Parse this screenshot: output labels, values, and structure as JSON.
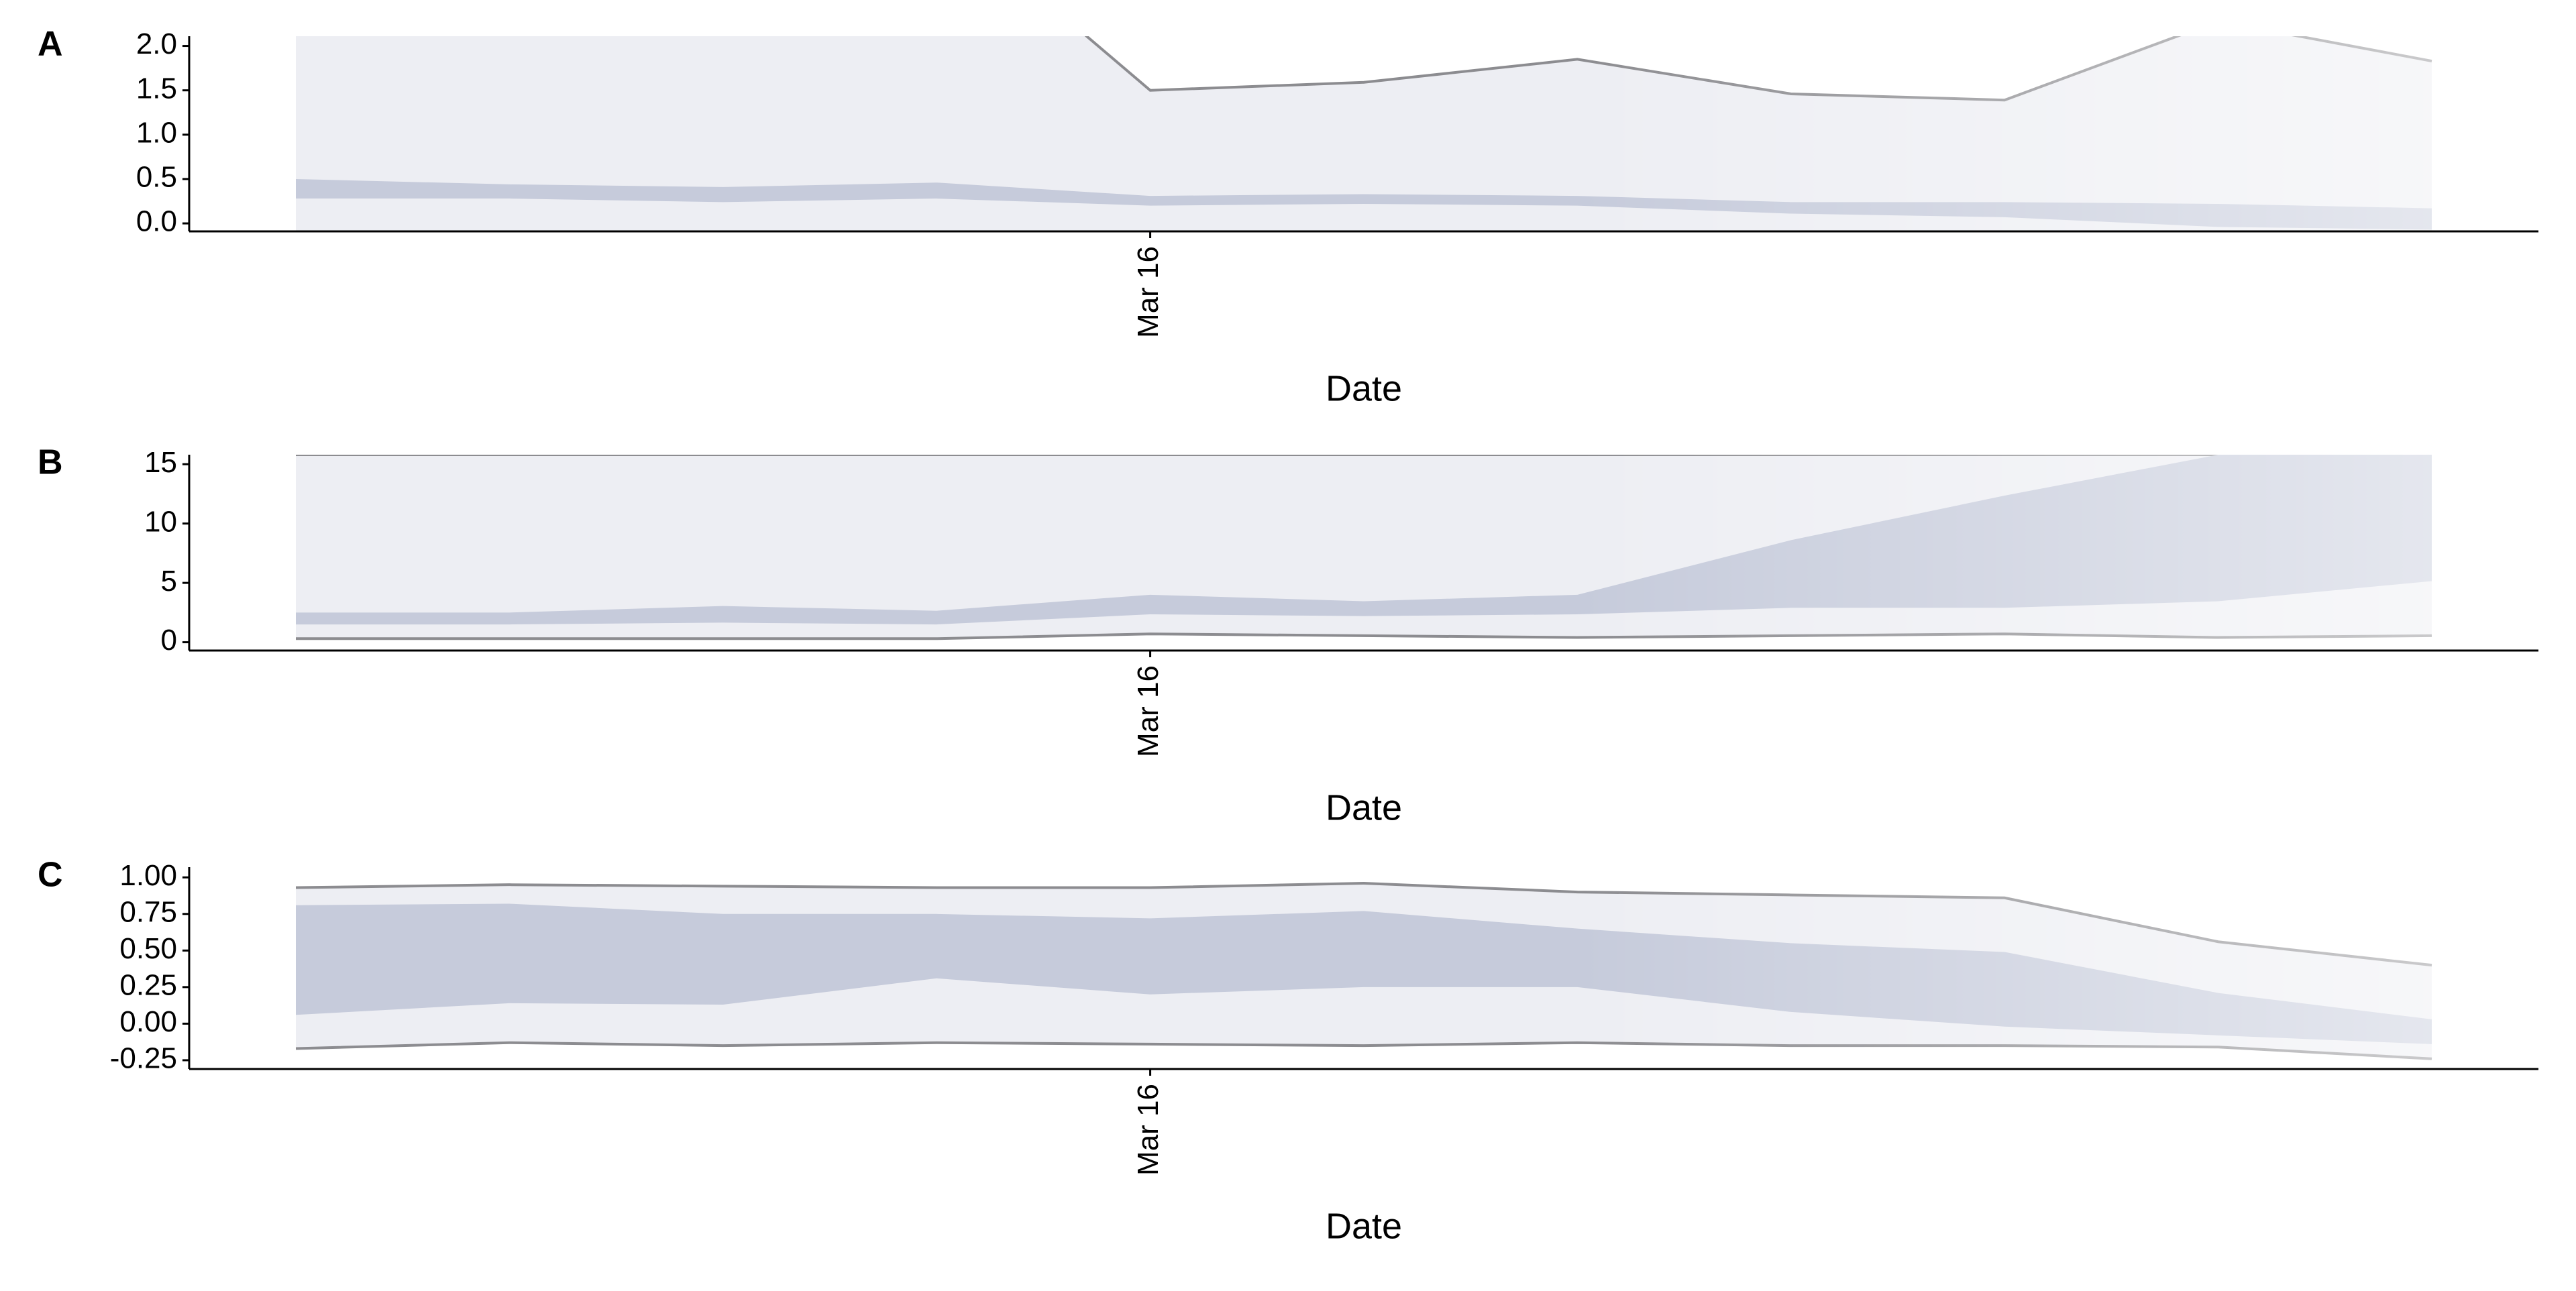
{
  "chart_data": [
    {
      "type": "ribbon",
      "panel_label": "A",
      "x_label": "Date",
      "categories": [
        null,
        null,
        null,
        null,
        "Mar 16",
        null,
        null,
        null,
        null,
        null,
        null
      ],
      "ylim": [
        -0.09,
        2.11
      ],
      "yticks": [
        {
          "value": 0,
          "label": "0.0"
        },
        0.5,
        {
          "value": 1,
          "label": "1.0"
        },
        1.5,
        {
          "value": 2,
          "label": "2.0"
        }
      ],
      "bands": [
        {
          "color": "#edeef3",
          "line_color": "#8c8c90",
          "lower": [
            -0.5,
            -0.5,
            -0.5,
            -0.5,
            -0.5,
            -0.5,
            -0.5,
            -0.5,
            -0.5,
            -0.5,
            -0.5
          ],
          "upper": [
            4,
            4,
            4,
            3.55,
            1.5,
            1.59,
            1.85,
            1.46,
            1.39,
            2.28,
            1.83
          ]
        },
        {
          "color": "#c6cbdb",
          "lower": [
            0.28,
            0.28,
            0.24,
            0.28,
            0.2,
            0.22,
            0.2,
            0.11,
            0.07,
            -0.04,
            -0.07
          ],
          "upper": [
            0.5,
            0.44,
            0.41,
            0.46,
            0.31,
            0.33,
            0.31,
            0.24,
            0.24,
            0.22,
            0.17
          ]
        }
      ]
    },
    {
      "type": "ribbon",
      "panel_label": "B",
      "x_label": "Date",
      "categories": [
        null,
        null,
        null,
        null,
        "Mar 16",
        null,
        null,
        null,
        null,
        null,
        null
      ],
      "ylim": [
        -0.7,
        15.8
      ],
      "yticks": [
        0,
        5,
        10,
        15
      ],
      "bands": [
        {
          "color": "#edeef3",
          "line_color": "#8c8c90",
          "lower": [
            0.3,
            0.3,
            0.3,
            0.3,
            0.7,
            0.55,
            0.4,
            0.55,
            0.7,
            0.4,
            0.55
          ],
          "upper": [
            15.8,
            15.8,
            15.8,
            15.8,
            15.8,
            15.8,
            15.8,
            15.8,
            15.8,
            15.8,
            15.8
          ]
        },
        {
          "color": "#c6cbdb",
          "lower": [
            1.5,
            1.5,
            1.65,
            1.5,
            2.35,
            2.2,
            2.35,
            2.9,
            2.9,
            3.45,
            5.15
          ],
          "upper": [
            2.5,
            2.5,
            3.05,
            2.65,
            4.0,
            3.45,
            4.0,
            8.6,
            12.35,
            15.8,
            15.8
          ]
        }
      ]
    },
    {
      "type": "ribbon",
      "panel_label": "C",
      "x_label": "Date",
      "categories": [
        null,
        null,
        null,
        null,
        "Mar 16",
        null,
        null,
        null,
        null,
        null,
        null
      ],
      "ylim": [
        -0.31,
        1.07
      ],
      "yticks": [
        -0.25,
        {
          "value": 0,
          "label": "0.00"
        },
        0.25,
        {
          "value": 0.5,
          "label": "0.50"
        },
        0.75,
        {
          "value": 1,
          "label": "1.00"
        }
      ],
      "bands": [
        {
          "color": "#edeef3",
          "line_color": "#8c8c90",
          "lower": [
            -0.17,
            -0.13,
            -0.15,
            -0.13,
            -0.14,
            -0.15,
            -0.13,
            -0.15,
            -0.15,
            -0.16,
            -0.24
          ],
          "upper": [
            0.93,
            0.95,
            0.94,
            0.93,
            0.93,
            0.96,
            0.9,
            0.88,
            0.86,
            0.56,
            0.4
          ]
        },
        {
          "color": "#c6cbdb",
          "lower": [
            0.06,
            0.14,
            0.13,
            0.31,
            0.2,
            0.25,
            0.25,
            0.08,
            -0.02,
            -0.08,
            -0.14
          ],
          "upper": [
            0.81,
            0.82,
            0.75,
            0.75,
            0.72,
            0.77,
            0.65,
            0.55,
            0.49,
            0.21,
            0.03
          ]
        }
      ]
    }
  ]
}
